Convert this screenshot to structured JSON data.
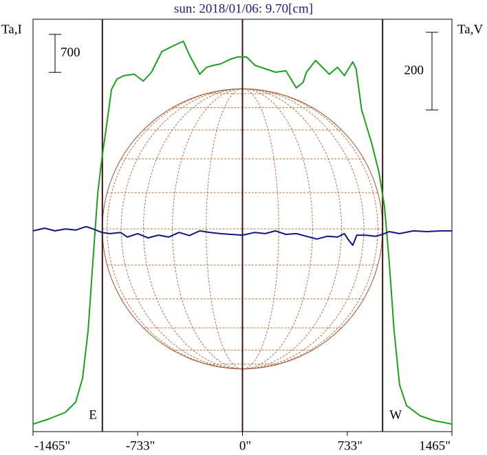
{
  "chart_data": {
    "type": "line",
    "title": "sun: 2018/01/06: 9.70[cm]",
    "y_label": "Ta,I",
    "y2_label": "Ta,V",
    "xlim": [
      -1465,
      1465
    ],
    "xticks": [
      {
        "value": -1465,
        "label": "-1465\""
      },
      {
        "value": -733,
        "label": "-733\""
      },
      {
        "value": 0,
        "label": "0\""
      },
      {
        "value": 733,
        "label": "733\""
      },
      {
        "value": 1465,
        "label": "1465\""
      }
    ],
    "ylim": [
      0,
      7600
    ],
    "y2lim": [
      -517,
      545
    ],
    "scale_bars": [
      {
        "axis": "y",
        "value": 700
      },
      {
        "axis": "y2",
        "value": 200
      }
    ],
    "markers": [
      {
        "x": -980,
        "label": "E"
      },
      {
        "x": 0
      },
      {
        "x": 980,
        "label": "W"
      }
    ],
    "series": [
      {
        "color": "#1aa01a",
        "axis": "y",
        "x": [
          -1465,
          -1359,
          -1239,
          -1166,
          -1118,
          -1079,
          -1046,
          -1012,
          -983,
          -949,
          -916,
          -877,
          -829,
          -757,
          -694,
          -636,
          -564,
          -516,
          -467,
          -414,
          -371,
          -299,
          -251,
          -202,
          -154,
          -82,
          -34,
          29,
          87,
          159,
          231,
          304,
          376,
          424,
          448,
          511,
          569,
          607,
          665,
          713,
          771,
          795,
          834,
          906,
          954,
          993,
          1026,
          1060,
          1099,
          1147,
          1243,
          1340,
          1465
        ],
        "values": [
          139,
          228,
          355,
          545,
          988,
          1875,
          3141,
          4408,
          5041,
          5675,
          6308,
          6498,
          6561,
          6587,
          6460,
          6625,
          7005,
          7068,
          7131,
          7195,
          6941,
          6587,
          6714,
          6751,
          6777,
          6865,
          6904,
          6904,
          6751,
          6688,
          6625,
          6650,
          6334,
          6435,
          6625,
          6840,
          6688,
          6587,
          6714,
          6561,
          6815,
          6688,
          5928,
          5295,
          4788,
          4155,
          3141,
          1875,
          862,
          482,
          291,
          203,
          139
        ]
      },
      {
        "color": "#101480",
        "axis": "y2",
        "x": [
          -1465,
          -1383,
          -1311,
          -1239,
          -1166,
          -1094,
          -1046,
          -983,
          -925,
          -853,
          -805,
          -733,
          -660,
          -588,
          -516,
          -443,
          -371,
          -299,
          -226,
          -154,
          -82,
          0,
          87,
          159,
          231,
          304,
          376,
          448,
          520,
          593,
          665,
          713,
          737,
          771,
          800,
          858,
          930,
          978,
          1026,
          1099,
          1195,
          1292,
          1388,
          1465
        ],
        "values": [
          0,
          7,
          0,
          5,
          2,
          11,
          5,
          -4,
          -7,
          -4,
          -16,
          -7,
          -18,
          -11,
          -16,
          -4,
          -12,
          0,
          -4,
          -7,
          -9,
          -11,
          -4,
          -7,
          0,
          -9,
          -7,
          -14,
          -21,
          -14,
          -16,
          -7,
          -21,
          -37,
          -11,
          -11,
          -14,
          -9,
          -2,
          -7,
          0,
          -2,
          0,
          0
        ]
      }
    ]
  }
}
